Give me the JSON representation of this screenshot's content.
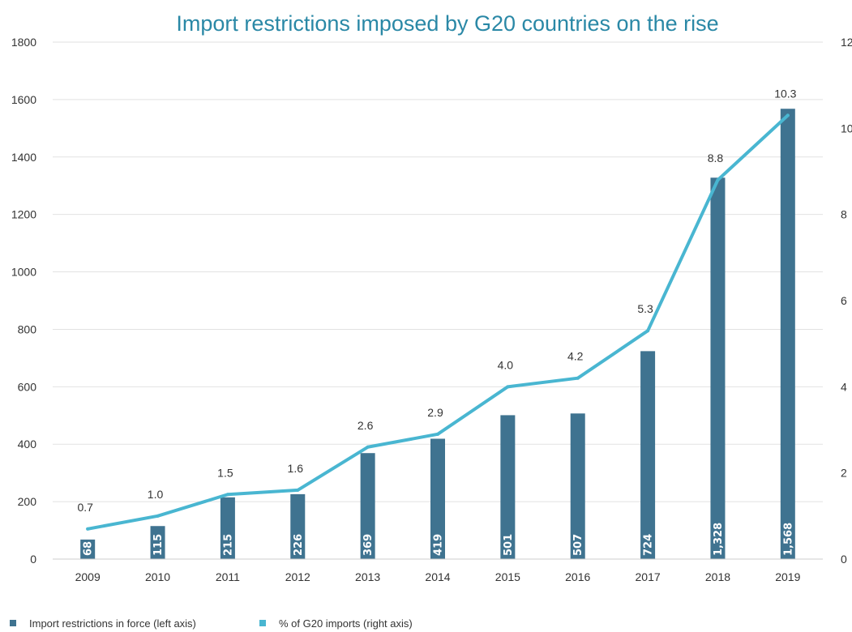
{
  "chart_data": {
    "type": "bar",
    "title": "Import restrictions imposed by G20 countries on the rise",
    "categories": [
      "2009",
      "2010",
      "2011",
      "2012",
      "2013",
      "2014",
      "2015",
      "2016",
      "2017",
      "2018",
      "2019"
    ],
    "series": [
      {
        "name": "Import restrictions in force (left axis)",
        "type": "bar",
        "axis": "left",
        "values": [
          68,
          115,
          215,
          226,
          369,
          419,
          501,
          507,
          724,
          1328,
          1568
        ],
        "labels": [
          "68",
          "115",
          "215",
          "226",
          "369",
          "419",
          "501",
          "507",
          "724",
          "1,328",
          "1,568"
        ],
        "color": "#3f7390"
      },
      {
        "name": "% of G20 imports (right axis)",
        "type": "line",
        "axis": "right",
        "values": [
          0.7,
          1.0,
          1.5,
          1.6,
          2.6,
          2.9,
          4.0,
          4.2,
          5.3,
          8.8,
          10.3
        ],
        "labels": [
          "0.7",
          "1.0",
          "1.5",
          "1.6",
          "2.6",
          "2.9",
          "4.0",
          "4.2",
          "5.3",
          "8.8",
          "10.3"
        ],
        "color": "#49b6d1"
      }
    ],
    "y_left": {
      "range": [
        0,
        1800
      ],
      "ticks": [
        "0",
        "200",
        "400",
        "600",
        "800",
        "1000",
        "1200",
        "1400",
        "1600",
        "1800"
      ]
    },
    "y_right": {
      "range": [
        0,
        12
      ],
      "ticks": [
        "0",
        "2",
        "4",
        "6",
        "8",
        "10",
        "12"
      ]
    },
    "grid": true,
    "legend_position": "bottom-left"
  }
}
